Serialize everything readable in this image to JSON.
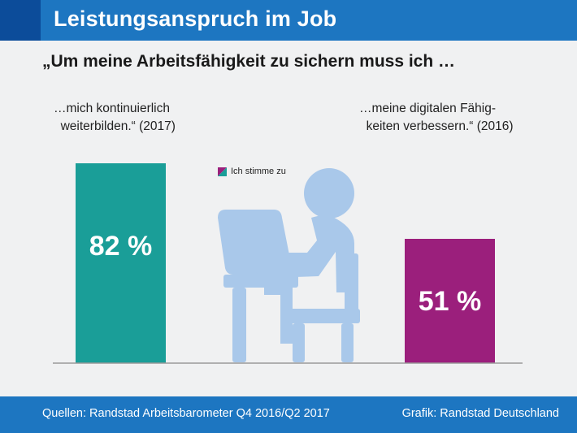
{
  "header": {
    "title": "Leistungsanspruch im Job"
  },
  "subtitle": "„Um meine Arbeitsfähigkeit zu sichern muss ich …",
  "colors": {
    "header_bg": "#1d76c1",
    "header_accent": "#0c4c9a",
    "bar_teal": "#1a9e98",
    "bar_purple": "#9b1f7c",
    "icon": "#a9c8ea",
    "axis": "#9a9a9a"
  },
  "icon": "person-at-computer-icon",
  "chart_data": {
    "type": "bar",
    "categories": [
      "…mich kontinuierlich\n  weiterbilden.“ (2017)",
      "…meine digitalen Fähig-\n  keiten verbessern.“ (2016)"
    ],
    "series": [
      {
        "name": "Ich stimme zu",
        "values": [
          82,
          51
        ]
      }
    ],
    "data_labels": [
      "82 %",
      "51 %"
    ],
    "bar_colors": [
      "#1a9e98",
      "#9b1f7c"
    ],
    "ylim": [
      0,
      100
    ],
    "unit": "%",
    "legend_position": "top-center",
    "grid": false
  },
  "footer": {
    "source": "Quellen: Randstad Arbeitsbarometer Q4 2016/Q2 2017",
    "credit": "Grafik: Randstad Deutschland"
  }
}
